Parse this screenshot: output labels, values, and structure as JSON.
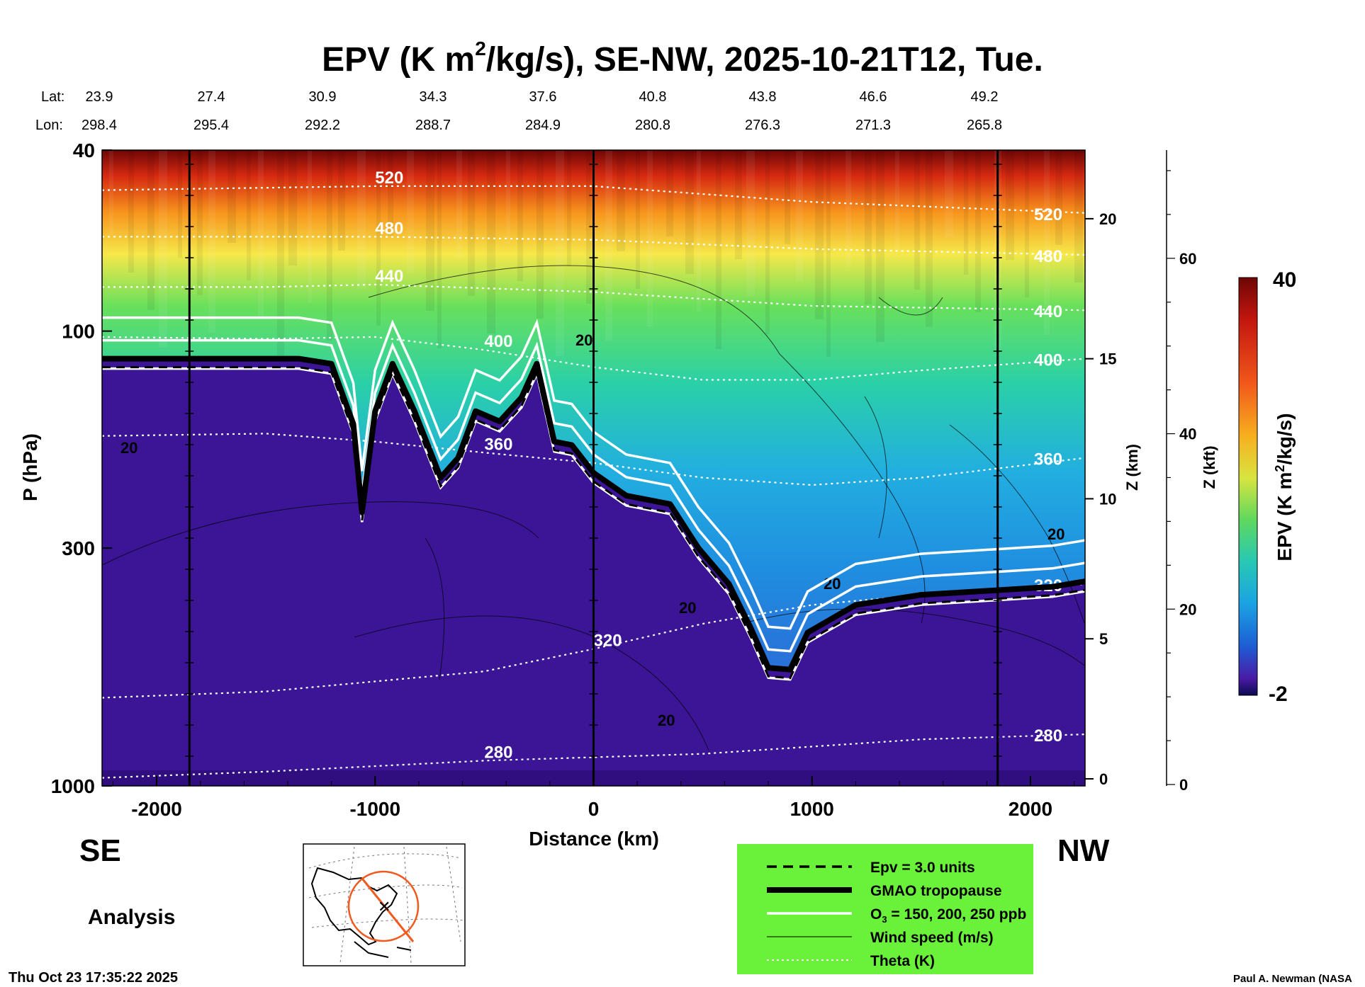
{
  "title": {
    "main": "EPV (K m",
    "sup": "2",
    "rest": "/kg/s), SE-NW, 2025-10-21T12, Tue."
  },
  "latlon": {
    "lat_label": "Lat:",
    "lon_label": "Lon:",
    "lats": [
      "23.9",
      "27.4",
      "30.9",
      "34.3",
      "37.6",
      "40.8",
      "43.8",
      "46.6",
      "49.2"
    ],
    "lons": [
      "298.4",
      "295.4",
      "292.2",
      "288.7",
      "284.9",
      "280.8",
      "276.3",
      "271.3",
      "265.8"
    ]
  },
  "chart_data": {
    "type": "contour-cross-section",
    "title": "EPV (K m2/kg/s), SE-NW, 2025-10-21T12, Tue.",
    "xlabel": "Distance (km)",
    "ylabel": "P (hPa)",
    "xlim": [
      -2250,
      2250
    ],
    "x_ticks": [
      -2000,
      -1000,
      0,
      1000,
      2000
    ],
    "x_tick_labels": [
      "-2000",
      "-1000",
      "0",
      "1000",
      "2000"
    ],
    "ylim_hpa": [
      1000,
      40
    ],
    "y_ticks": [
      40,
      100,
      300,
      1000
    ],
    "y_tick_labels": [
      "40",
      "100",
      "300",
      "1000"
    ],
    "z_km_label": "Z (km)",
    "z_km_ticks": [
      0,
      5,
      10,
      15,
      20
    ],
    "z_km_tick_labels": [
      "0",
      "5",
      "10",
      "15",
      "20"
    ],
    "z_kft_label": "Z (kft)",
    "z_kft_ticks": [
      0,
      20,
      40,
      60
    ],
    "z_kft_tick_labels": [
      "0",
      "20",
      "40",
      "60"
    ],
    "reference_lines_km": [
      -1850,
      0,
      1850
    ],
    "colorbar": {
      "label": "EPV (K m2/kg/s)",
      "min": -2,
      "max": 40,
      "min_label": "-2",
      "max_label": "40"
    },
    "theta_levels": [
      {
        "theta": 280,
        "label": "280",
        "points": [
          [
            -2250,
            960
          ],
          [
            -1500,
            930
          ],
          [
            -500,
            880
          ],
          [
            500,
            850
          ],
          [
            1500,
            790
          ],
          [
            2250,
            770
          ]
        ]
      },
      {
        "theta": 320,
        "label": "320",
        "points": [
          [
            -2250,
            640
          ],
          [
            -1500,
            620
          ],
          [
            -500,
            560
          ],
          [
            0,
            500
          ],
          [
            500,
            440
          ],
          [
            1000,
            400
          ],
          [
            1500,
            380
          ],
          [
            2250,
            360
          ]
        ]
      },
      {
        "theta": 360,
        "label": "360",
        "points": [
          [
            -2250,
            170
          ],
          [
            -1500,
            168
          ],
          [
            -1000,
            175
          ],
          [
            -500,
            185
          ],
          [
            0,
            195
          ],
          [
            500,
            210
          ],
          [
            1000,
            218
          ],
          [
            1500,
            210
          ],
          [
            2250,
            190
          ]
        ]
      },
      {
        "theta": 400,
        "label": "400",
        "points": [
          [
            -2250,
            103
          ],
          [
            -1500,
            104
          ],
          [
            -1000,
            103
          ],
          [
            -500,
            110
          ],
          [
            0,
            120
          ],
          [
            500,
            128
          ],
          [
            1000,
            128
          ],
          [
            1500,
            122
          ],
          [
            2250,
            115
          ]
        ]
      },
      {
        "theta": 440,
        "label": "440",
        "points": [
          [
            -2250,
            80
          ],
          [
            -1500,
            80
          ],
          [
            -1000,
            79
          ],
          [
            0,
            82
          ],
          [
            1000,
            88
          ],
          [
            2250,
            90
          ]
        ]
      },
      {
        "theta": 480,
        "label": "480",
        "points": [
          [
            -2250,
            62
          ],
          [
            -1000,
            62
          ],
          [
            0,
            63
          ],
          [
            1000,
            66
          ],
          [
            2250,
            68
          ]
        ]
      },
      {
        "theta": 520,
        "label": "520",
        "points": [
          [
            -2250,
            49
          ],
          [
            -1000,
            48
          ],
          [
            0,
            48
          ],
          [
            1000,
            52
          ],
          [
            2250,
            55
          ]
        ]
      }
    ],
    "tropopause_gmao": {
      "label": "GMAO tropopause",
      "points": [
        [
          -2250,
          115
        ],
        [
          -1800,
          115
        ],
        [
          -1350,
          115
        ],
        [
          -1200,
          118
        ],
        [
          -1100,
          160
        ],
        [
          -1060,
          250
        ],
        [
          -1000,
          150
        ],
        [
          -920,
          118
        ],
        [
          -820,
          150
        ],
        [
          -700,
          210
        ],
        [
          -620,
          190
        ],
        [
          -540,
          150
        ],
        [
          -430,
          158
        ],
        [
          -330,
          140
        ],
        [
          -260,
          118
        ],
        [
          -180,
          175
        ],
        [
          -100,
          178
        ],
        [
          0,
          205
        ],
        [
          150,
          230
        ],
        [
          350,
          240
        ],
        [
          480,
          300
        ],
        [
          620,
          360
        ],
        [
          720,
          450
        ],
        [
          800,
          550
        ],
        [
          900,
          555
        ],
        [
          980,
          460
        ],
        [
          1200,
          400
        ],
        [
          1500,
          380
        ],
        [
          1700,
          375
        ],
        [
          2100,
          365
        ],
        [
          2250,
          355
        ]
      ]
    },
    "epv_3_contour": {
      "label": "Epv = 3.0 units"
    },
    "o3_contours": {
      "label": "O3 = 150, 200, 250 ppb",
      "levels_ppb": [
        150,
        200,
        250
      ]
    },
    "wind_speed": {
      "label": "Wind speed (m/s)",
      "annotations": [
        "20",
        "20",
        "20",
        "20",
        "20",
        "20"
      ]
    },
    "theta": {
      "label": "Theta (K)"
    }
  },
  "labels": {
    "se": "SE",
    "nw": "NW",
    "analysis": "Analysis",
    "timestamp": "Thu Oct 23 17:35:22 2025",
    "credit": "Paul A. Newman (NASA"
  },
  "legend": {
    "bg_color": "#6af23a",
    "items": [
      {
        "key": "epv",
        "text": "Epv = 3.0 units"
      },
      {
        "key": "tropopause",
        "text": "GMAO tropopause"
      },
      {
        "key": "o3",
        "pre": "O",
        "sub": "3",
        "post": " = 150, 200, 250 ppb"
      },
      {
        "key": "wind",
        "text": "Wind speed (m/s)"
      },
      {
        "key": "theta",
        "text": "Theta (K)"
      }
    ]
  },
  "colors": {
    "purple": "#3a0e96",
    "stratosphere": "#1f9bdb",
    "top": "#6e0606"
  }
}
